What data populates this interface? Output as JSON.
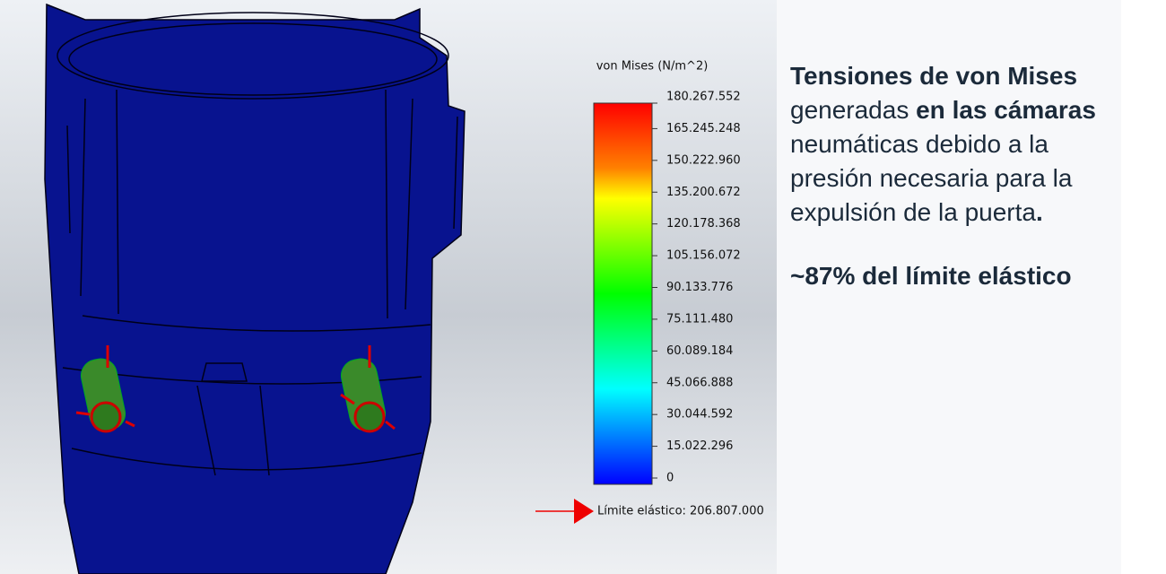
{
  "legend": {
    "title": "von Mises (N/m^2)",
    "ticks": [
      "180.267.552",
      "165.245.248",
      "150.222.960",
      "135.200.672",
      "120.178.368",
      "105.156.072",
      "90.133.776",
      "75.111.480",
      "60.089.184",
      "45.066.888",
      "30.044.592",
      "15.022.296",
      "0"
    ],
    "limit": "Límite elástico: 206.807.000"
  },
  "text": {
    "paragraph": [
      {
        "text": "Tensiones de von Mises",
        "bold": true
      },
      {
        "text": " generadas ",
        "bold": false
      },
      {
        "text": "en las cámaras",
        "bold": true
      },
      {
        "text": " neumáticas debido a la presión necesaria para la expulsión de la puerta",
        "bold": false
      },
      {
        "text": ".",
        "bold": true
      }
    ],
    "highlight": "~87% del límite elástico"
  }
}
